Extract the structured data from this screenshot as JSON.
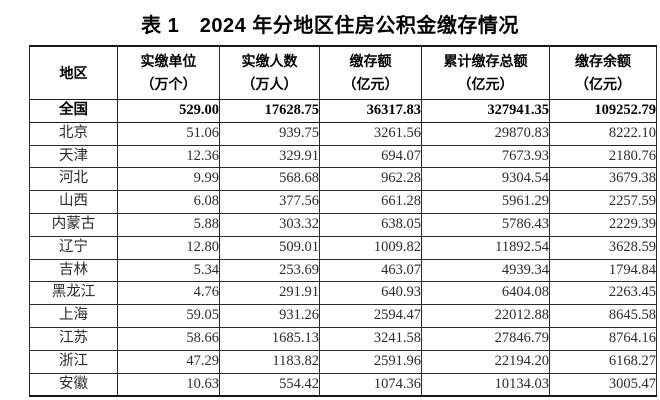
{
  "title": "表 1　2024 年分地区住房公积金缴存情况",
  "table": {
    "columns": [
      {
        "label": "地区",
        "unit": ""
      },
      {
        "label": "实缴单位",
        "unit": "（万个）"
      },
      {
        "label": "实缴人数",
        "unit": "（万人）"
      },
      {
        "label": "缴存额",
        "unit": "（亿元）"
      },
      {
        "label": "累计缴存总额",
        "unit": "（亿元）"
      },
      {
        "label": "缴存余额",
        "unit": "（亿元）"
      }
    ],
    "rows": [
      {
        "region": "全国",
        "bold": true,
        "values": [
          "529.00",
          "17628.75",
          "36317.83",
          "327941.35",
          "109252.79"
        ]
      },
      {
        "region": "北京",
        "bold": false,
        "values": [
          "51.06",
          "939.75",
          "3261.56",
          "29870.83",
          "8222.10"
        ]
      },
      {
        "region": "天津",
        "bold": false,
        "values": [
          "12.36",
          "329.91",
          "694.07",
          "7673.93",
          "2180.76"
        ]
      },
      {
        "region": "河北",
        "bold": false,
        "values": [
          "9.99",
          "568.68",
          "962.28",
          "9304.54",
          "3679.38"
        ]
      },
      {
        "region": "山西",
        "bold": false,
        "values": [
          "6.08",
          "377.56",
          "661.28",
          "5961.29",
          "2257.59"
        ]
      },
      {
        "region": "内蒙古",
        "bold": false,
        "values": [
          "5.88",
          "303.32",
          "638.05",
          "5786.43",
          "2229.39"
        ]
      },
      {
        "region": "辽宁",
        "bold": false,
        "values": [
          "12.80",
          "509.01",
          "1009.82",
          "11892.54",
          "3628.59"
        ]
      },
      {
        "region": "吉林",
        "bold": false,
        "values": [
          "5.34",
          "253.69",
          "463.07",
          "4939.34",
          "1794.84"
        ]
      },
      {
        "region": "黑龙江",
        "bold": false,
        "values": [
          "4.76",
          "291.91",
          "640.93",
          "6404.08",
          "2263.45"
        ]
      },
      {
        "region": "上海",
        "bold": false,
        "values": [
          "59.05",
          "931.26",
          "2594.47",
          "22012.88",
          "8645.58"
        ]
      },
      {
        "region": "江苏",
        "bold": false,
        "values": [
          "58.66",
          "1685.13",
          "3241.58",
          "27846.79",
          "8764.16"
        ]
      },
      {
        "region": "浙江",
        "bold": false,
        "values": [
          "47.29",
          "1183.82",
          "2591.96",
          "22194.20",
          "6168.27"
        ]
      },
      {
        "region": "安徽",
        "bold": false,
        "values": [
          "10.63",
          "554.42",
          "1074.36",
          "10134.03",
          "3005.47"
        ]
      }
    ]
  },
  "colors": {
    "background": "#ffffff",
    "text": "#2b2b2b",
    "title_text": "#000000",
    "border": "#2b2b2b"
  }
}
